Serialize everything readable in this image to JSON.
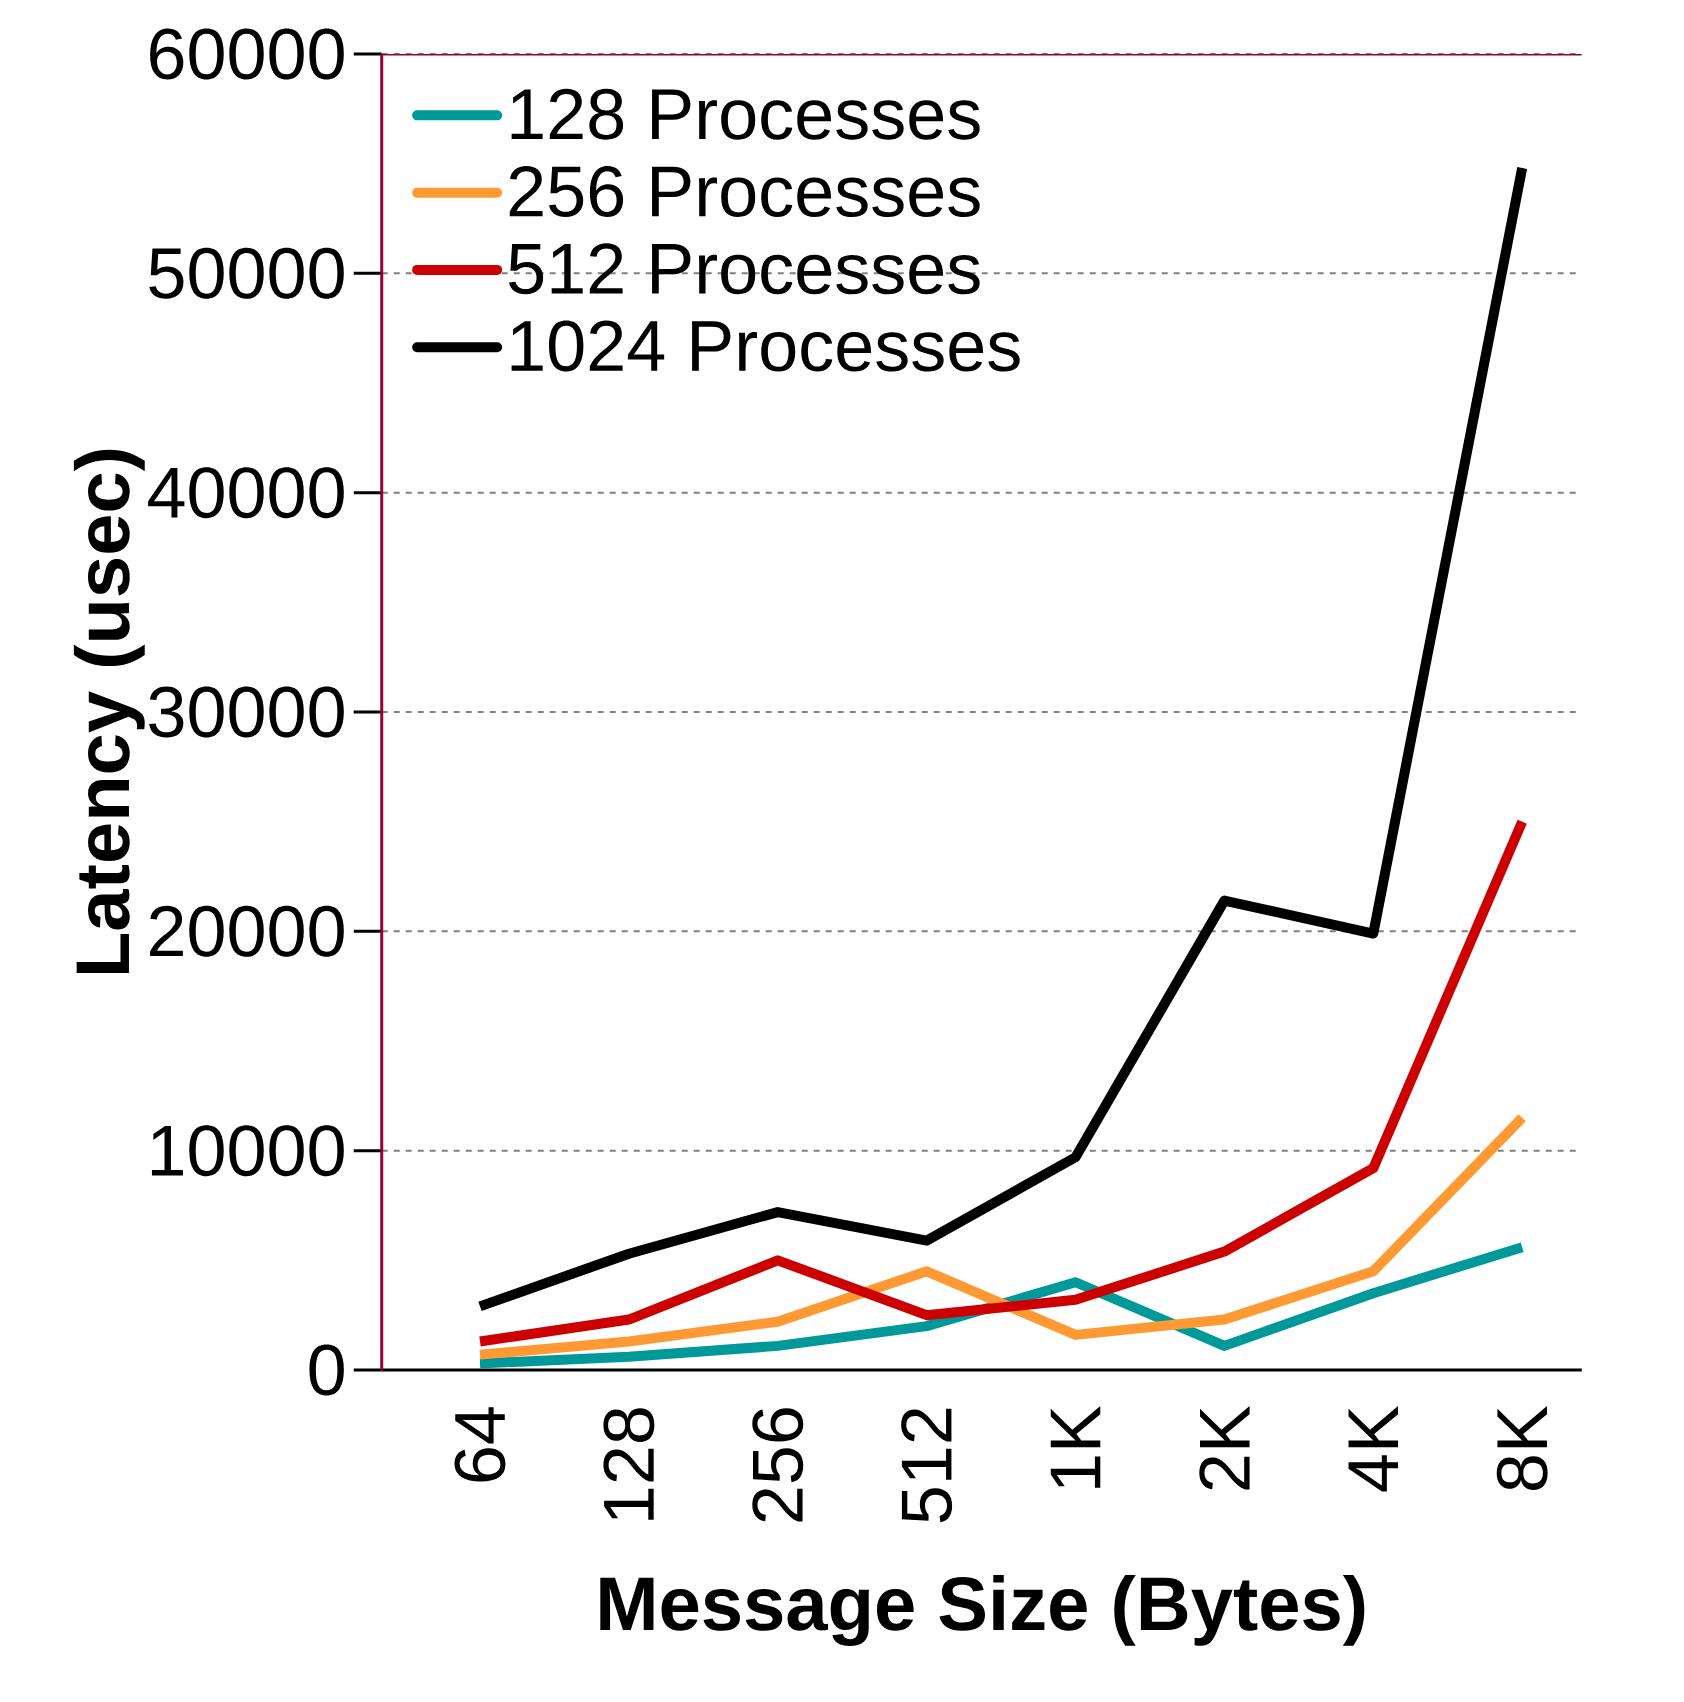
{
  "chart_data": {
    "type": "line",
    "xlabel": "Message Size (Bytes)",
    "ylabel": "Latency (usec)",
    "categories": [
      "64",
      "128",
      "256",
      "512",
      "1K",
      "2K",
      "4K",
      "8K"
    ],
    "series": [
      {
        "name": "128 Processes",
        "color": "#009999",
        "values": [
          300,
          600,
          1100,
          2000,
          4000,
          1100,
          3500,
          5600
        ]
      },
      {
        "name": "256 Processes",
        "color": "#ff9933",
        "values": [
          700,
          1300,
          2200,
          4500,
          1600,
          2300,
          4500,
          11500
        ]
      },
      {
        "name": "512 Processes",
        "color": "#cc0000",
        "values": [
          1300,
          2300,
          5000,
          2500,
          3200,
          5400,
          9200,
          25000
        ]
      },
      {
        "name": "1024 Processes",
        "color": "#000000",
        "values": [
          2900,
          5300,
          7200,
          5900,
          9700,
          21400,
          19900,
          54800
        ]
      }
    ],
    "ylim": [
      0,
      60000
    ],
    "yticks": [
      0,
      10000,
      20000,
      30000,
      40000,
      50000,
      60000
    ],
    "grid": "y",
    "legend": "top left",
    "marker": "none",
    "line_style": "solid"
  }
}
